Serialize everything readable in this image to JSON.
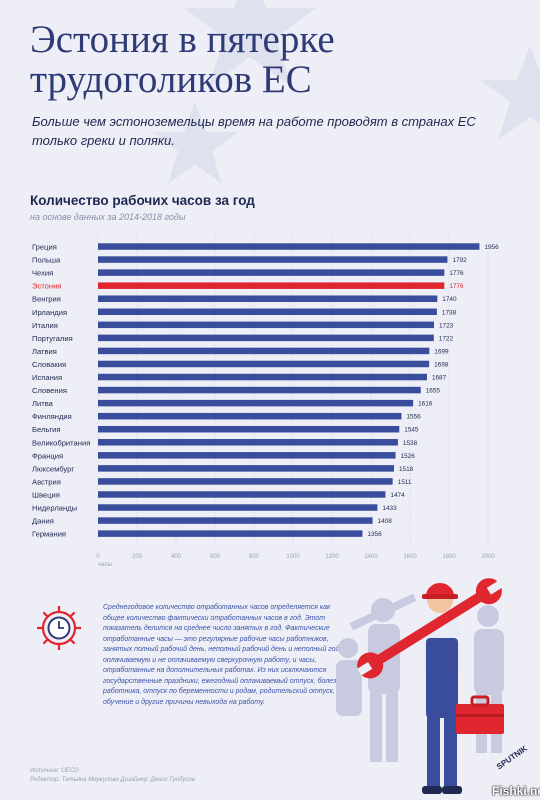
{
  "header": {
    "title_line1": "Эстония в пятерке",
    "title_line2": "трудоголиков ЕС",
    "subtitle": "Больше чем эстоноземельцы время на работе проводят в странах ЕС только греки и поляки."
  },
  "colors": {
    "bar": "#3a4d9c",
    "highlight": "#e0262e",
    "grid": "#c9cde2",
    "text_dark": "#1f2850"
  },
  "chart_data": {
    "type": "bar",
    "orientation": "horizontal",
    "title": "Количество рабочих часов за год",
    "subtitle": "на основе данных за 2014-2018 годы",
    "xlabel": "часы",
    "xlim": [
      0,
      2000
    ],
    "x_ticks": [
      0,
      200,
      400,
      600,
      800,
      1000,
      1200,
      1400,
      1600,
      1800,
      2000
    ],
    "grid": true,
    "highlight_category": "Эстония",
    "categories": [
      "Греция",
      "Польша",
      "Чехия",
      "Эстония",
      "Венгрия",
      "Ирландия",
      "Италия",
      "Португалия",
      "Латвия",
      "Словакия",
      "Испания",
      "Словения",
      "Литва",
      "Финляндия",
      "Бельгия",
      "Великобритания",
      "Франция",
      "Люксембург",
      "Австрия",
      "Швеция",
      "Нидерланды",
      "Дания",
      "Германия"
    ],
    "values": [
      1956,
      1792,
      1776,
      1776,
      1740,
      1738,
      1723,
      1722,
      1699,
      1698,
      1687,
      1655,
      1616,
      1556,
      1545,
      1538,
      1526,
      1518,
      1511,
      1474,
      1433,
      1408,
      1356
    ]
  },
  "note": "Среднегодовое количество отработанных часов определяется как общее количество фактически отработанных часов в год. Этот показатель делится на среднее число занятых в год. Фактические отработанные часы — это регулярные рабочие часы работников, занятых полный рабочий день, неполный рабочий день и неполный год, оплачиваемую и не оплачиваемую сверхурочную работу, и часы, отработанные на дополнительных работах. Из них исключаются государственные праздники, ежегодный оплачиваемый отпуск, болезнь работника, отпуск по беременности и родам, родительский отпуск, обучение и другие причины невыхода на работу.",
  "credits": {
    "source": "Источник: OECD",
    "authors": "Редактор: Татьяна Меркулова   Дизайнер: Денис Грибусов"
  },
  "brand": "SPUTNIK",
  "watermark": "Fishki.net",
  "icons": [
    "gear-clock-icon",
    "worker-with-wrench-illustration"
  ]
}
